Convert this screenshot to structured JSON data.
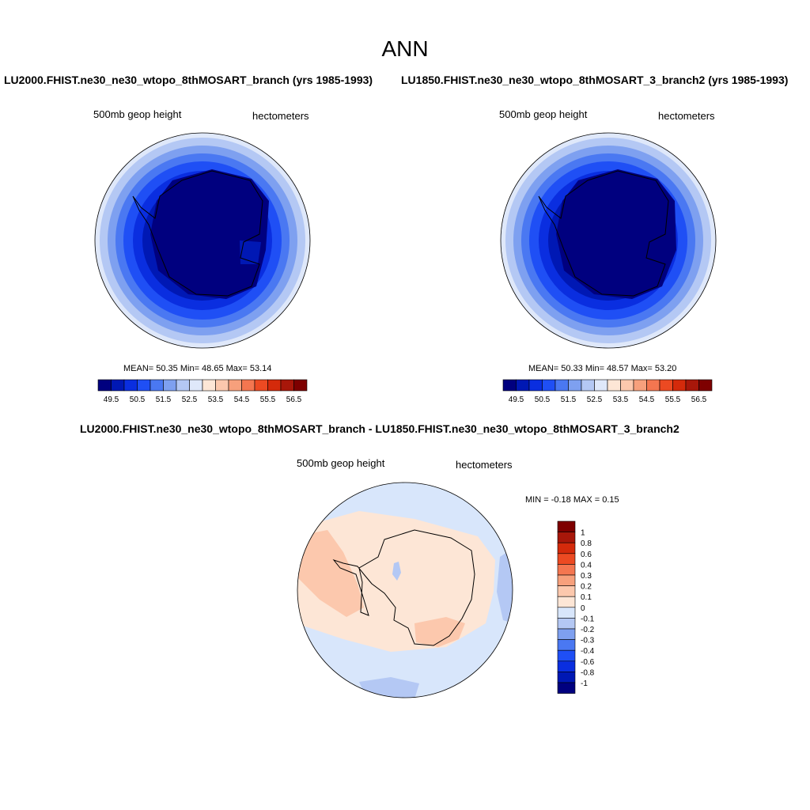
{
  "title": "ANN",
  "panels": [
    {
      "title": "LU2000.FHIST.ne30_ne30_wtopo_8thMOSART_branch (yrs 1985-1993)",
      "left_label": "500mb geop height",
      "right_label": "hectometers",
      "stats": "MEAN=  50.35  Min=  48.65  Max=  53.14",
      "colorbar_labels": [
        "49.5",
        "50.5",
        "51.5",
        "52.5",
        "53.5",
        "54.5",
        "55.5",
        "56.5"
      ]
    },
    {
      "title": "LU1850.FHIST.ne30_ne30_wtopo_8thMOSART_3_branch2 (yrs 1985-1993)",
      "left_label": "500mb geop height",
      "right_label": "hectometers",
      "stats": "MEAN=  50.33  Min=  48.57  Max=  53.20",
      "colorbar_labels": [
        "49.5",
        "50.5",
        "51.5",
        "52.5",
        "53.5",
        "54.5",
        "55.5",
        "56.5"
      ]
    }
  ],
  "diff": {
    "title": "LU2000.FHIST.ne30_ne30_wtopo_8thMOSART_branch - LU1850.FHIST.ne30_ne30_wtopo_8thMOSART_3_branch2",
    "left_label": "500mb geop height",
    "right_label": "hectometers",
    "stats": "MIN =  -0.18 MAX =   0.15",
    "colorbar_labels": [
      "1",
      "0.8",
      "0.6",
      "0.4",
      "0.3",
      "0.2",
      "0.1",
      "0",
      "-0.1",
      "-0.2",
      "-0.3",
      "-0.4",
      "-0.6",
      "-0.8",
      "-1"
    ]
  },
  "colors": {
    "abs_scale": [
      "#00007f",
      "#0018b4",
      "#0a2ee0",
      "#1f4ff5",
      "#4a78f2",
      "#7ea0f0",
      "#b4c8f4",
      "#dfe8fa",
      "#fde6d6",
      "#fcc8ad",
      "#f7a07c",
      "#f47650",
      "#ec4a22",
      "#d42a0b",
      "#a8170a",
      "#7e0000"
    ],
    "diff_scale": [
      "#7e0000",
      "#a8170a",
      "#d42a0b",
      "#ec4a22",
      "#f47650",
      "#f7a07c",
      "#fcc8ad",
      "#fde6d6",
      "#d8e6fb",
      "#b4c8f4",
      "#7ea0f0",
      "#4a78f2",
      "#1f4ff5",
      "#0a2ee0",
      "#0018b4",
      "#00007f"
    ]
  }
}
